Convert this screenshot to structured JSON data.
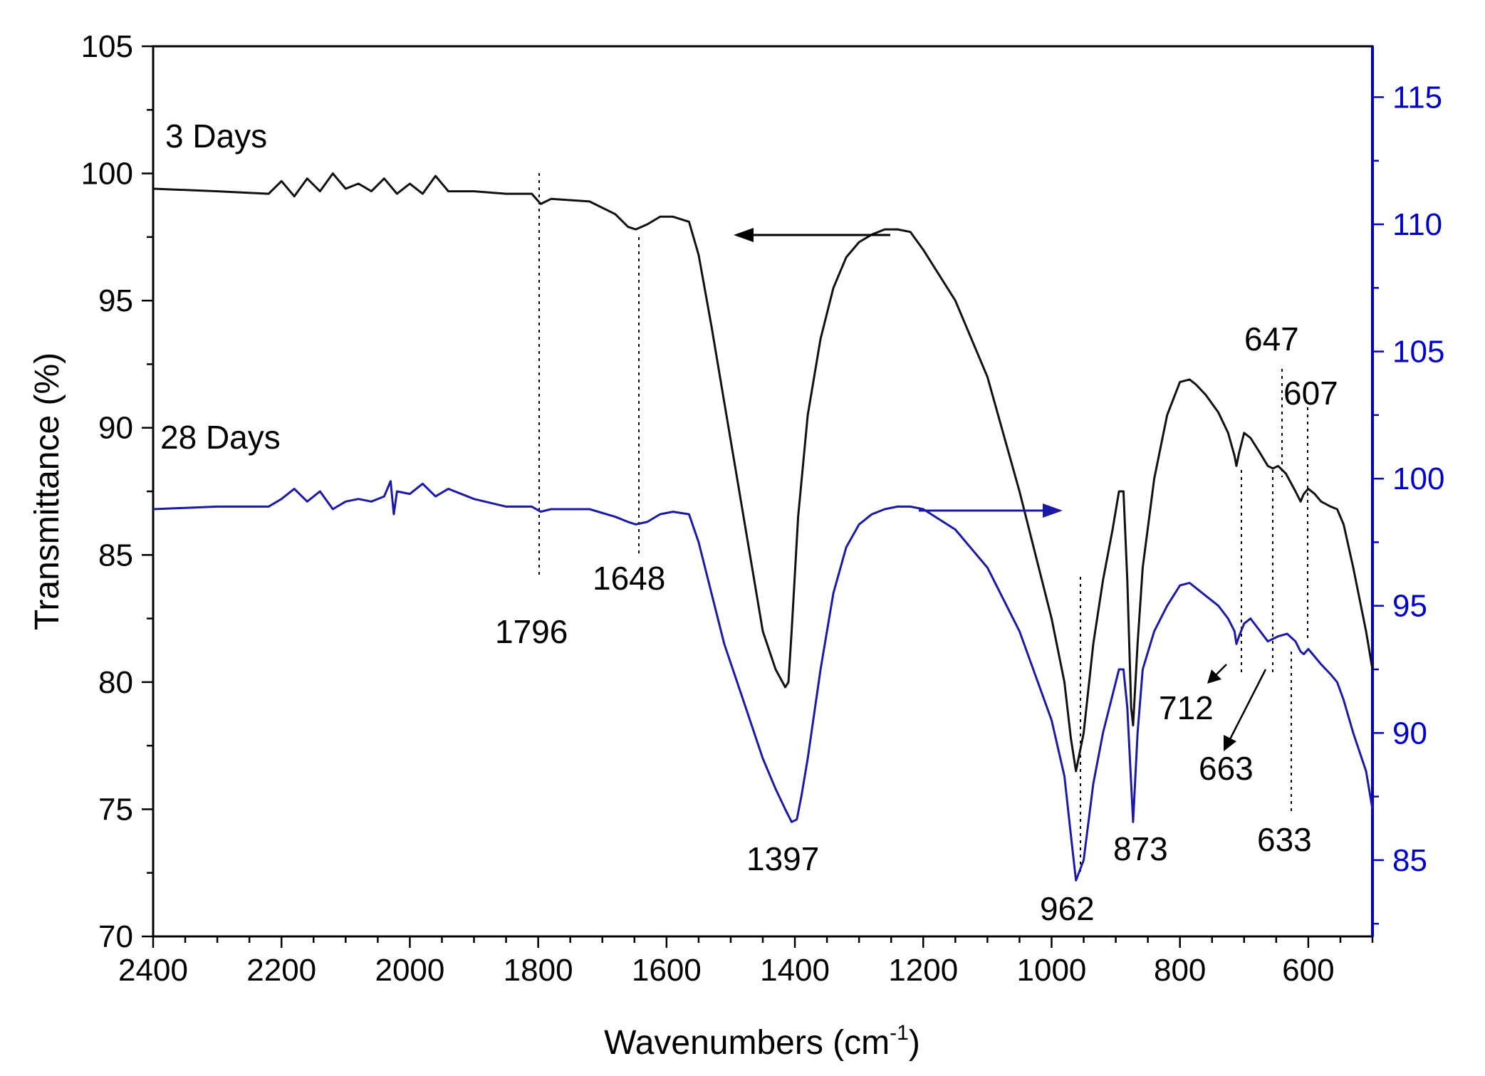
{
  "chart_data": {
    "type": "line",
    "title": "",
    "xlabel": "Wavenumbers (cm",
    "xlabel_sup": "-1",
    "xlabel_close": ")",
    "ylabel": "Transmittance (%)",
    "xlim": [
      2400,
      500
    ],
    "ylim_left": [
      70,
      105
    ],
    "ylim_right": [
      82,
      117
    ],
    "x_ticks": [
      "2400",
      "2200",
      "2000",
      "1800",
      "1600",
      "1400",
      "1200",
      "1000",
      "800",
      "600"
    ],
    "y_ticks_left": [
      "70",
      "75",
      "80",
      "85",
      "90",
      "95",
      "100",
      "105"
    ],
    "y_ticks_right": [
      "85",
      "90",
      "95",
      "100",
      "105",
      "110",
      "115"
    ],
    "colors": {
      "three_day": "#111111",
      "twentyeight_day": "#1a1aa6",
      "axis": "#000000",
      "right_axis": "#0000cc"
    },
    "series": [
      {
        "name": "3 Days",
        "axis": "left",
        "x": [
          2400,
          2300,
          2220,
          2200,
          2180,
          2160,
          2140,
          2120,
          2100,
          2080,
          2060,
          2040,
          2020,
          2000,
          1980,
          1960,
          1940,
          1900,
          1850,
          1810,
          1796,
          1780,
          1720,
          1680,
          1660,
          1648,
          1630,
          1610,
          1590,
          1565,
          1550,
          1530,
          1510,
          1490,
          1470,
          1450,
          1430,
          1415,
          1410,
          1405,
          1395,
          1380,
          1360,
          1340,
          1320,
          1300,
          1280,
          1260,
          1240,
          1220,
          1200,
          1150,
          1100,
          1050,
          1000,
          980,
          970,
          962,
          950,
          935,
          920,
          905,
          895,
          888,
          882,
          876,
          873,
          866,
          858,
          840,
          820,
          800,
          785,
          775,
          760,
          740,
          725,
          715,
          712,
          708,
          700,
          690,
          675,
          663,
          655,
          647,
          635,
          620,
          612,
          607,
          600,
          590,
          580,
          565,
          555,
          545,
          530,
          510,
          500
        ],
        "y": [
          99.4,
          99.3,
          99.2,
          99.7,
          99.1,
          99.8,
          99.3,
          100.0,
          99.4,
          99.6,
          99.3,
          99.8,
          99.2,
          99.6,
          99.2,
          99.9,
          99.3,
          99.3,
          99.2,
          99.2,
          98.8,
          99.0,
          98.9,
          98.4,
          97.9,
          97.8,
          98.0,
          98.3,
          98.3,
          98.1,
          96.8,
          94.0,
          91.0,
          88.0,
          85.0,
          82.0,
          80.5,
          79.8,
          80.0,
          82.0,
          86.5,
          90.5,
          93.5,
          95.5,
          96.7,
          97.3,
          97.6,
          97.8,
          97.8,
          97.7,
          97.0,
          95.0,
          92.0,
          87.5,
          82.5,
          80.0,
          77.8,
          76.5,
          78.0,
          81.5,
          84.0,
          86.0,
          87.5,
          87.5,
          84.0,
          79.0,
          78.3,
          81.5,
          84.5,
          88.0,
          90.5,
          91.8,
          91.9,
          91.7,
          91.3,
          90.6,
          89.8,
          88.9,
          88.5,
          89.0,
          89.8,
          89.6,
          89.0,
          88.5,
          88.4,
          88.5,
          88.2,
          87.5,
          87.1,
          87.4,
          87.6,
          87.4,
          87.1,
          86.9,
          86.8,
          86.2,
          84.5,
          82.0,
          80.5
        ]
      },
      {
        "name": "28 Days",
        "axis": "right",
        "x": [
          2400,
          2300,
          2220,
          2200,
          2180,
          2160,
          2140,
          2120,
          2100,
          2080,
          2060,
          2040,
          2030,
          2025,
          2020,
          2000,
          1980,
          1960,
          1940,
          1900,
          1850,
          1810,
          1796,
          1780,
          1720,
          1680,
          1660,
          1648,
          1630,
          1610,
          1590,
          1565,
          1550,
          1530,
          1510,
          1490,
          1470,
          1450,
          1430,
          1415,
          1405,
          1397,
          1390,
          1380,
          1360,
          1340,
          1320,
          1300,
          1280,
          1260,
          1240,
          1220,
          1200,
          1150,
          1100,
          1050,
          1000,
          980,
          970,
          962,
          950,
          935,
          920,
          905,
          895,
          888,
          882,
          876,
          873,
          866,
          858,
          840,
          820,
          800,
          785,
          775,
          760,
          740,
          725,
          715,
          712,
          708,
          700,
          690,
          675,
          663,
          655,
          647,
          633,
          620,
          612,
          607,
          600,
          590,
          580,
          565,
          555,
          545,
          530,
          510,
          500
        ],
        "y": [
          98.8,
          98.9,
          98.9,
          99.2,
          99.6,
          99.1,
          99.5,
          98.8,
          99.1,
          99.2,
          99.1,
          99.3,
          99.9,
          98.6,
          99.5,
          99.4,
          99.8,
          99.3,
          99.6,
          99.2,
          98.9,
          98.9,
          98.7,
          98.8,
          98.8,
          98.5,
          98.3,
          98.2,
          98.3,
          98.6,
          98.7,
          98.6,
          97.5,
          95.5,
          93.5,
          92.0,
          90.5,
          89.0,
          87.8,
          87.0,
          86.5,
          86.6,
          87.5,
          89.0,
          92.5,
          95.5,
          97.3,
          98.2,
          98.6,
          98.8,
          98.9,
          98.9,
          98.8,
          98.0,
          96.5,
          94.0,
          90.5,
          88.3,
          86.0,
          84.2,
          85.0,
          88.0,
          90.0,
          91.5,
          92.5,
          92.5,
          91.0,
          88.0,
          86.5,
          90.0,
          92.5,
          94.0,
          95.0,
          95.8,
          95.9,
          95.7,
          95.4,
          95.0,
          94.5,
          94.0,
          93.5,
          93.8,
          94.3,
          94.5,
          94.0,
          93.6,
          93.7,
          93.8,
          93.9,
          93.6,
          93.2,
          93.1,
          93.3,
          93.0,
          92.7,
          92.3,
          92.0,
          91.3,
          90.0,
          88.5,
          87.0
        ]
      }
    ],
    "annotations": {
      "legend_3days": "3 Days",
      "legend_28days": "28 Days",
      "peaks": [
        "1796",
        "1648",
        "1397",
        "962",
        "873",
        "712",
        "663",
        "633",
        "647",
        "607"
      ]
    }
  }
}
